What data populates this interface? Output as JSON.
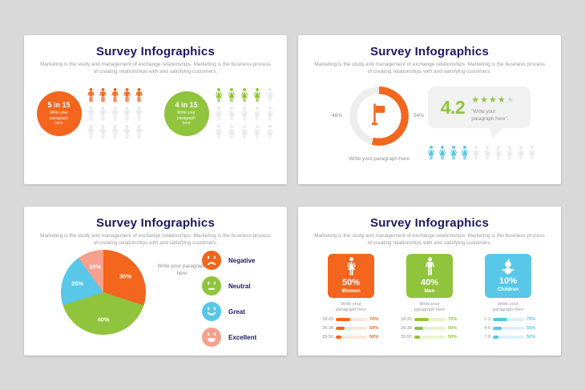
{
  "palette": {
    "orange": "#F4651D",
    "green": "#8FC43C",
    "cyan": "#58C7E8",
    "salmon": "#F6A08E",
    "navy": "#1E1765",
    "muted_icon": "#E9E9E9",
    "star_empty": "#D8D8D8",
    "donut_track": "#EDEDED",
    "bubble_bg": "#F1F1F1"
  },
  "slides": {
    "common": {
      "title": "Survey Infographics",
      "subtitle": "Marketing is the study and management of exchange relationships. Marketing is the business process of creating relationships with and satisfying customers."
    },
    "slide1": {
      "groups": [
        {
          "stat": "5 in 15",
          "note": "Write your paragraph here",
          "color": "#F4651D",
          "icon": "male",
          "total": 15,
          "filled": 5,
          "cols": 5
        },
        {
          "stat": "4 in 15",
          "note": "Write your paragraph here",
          "color": "#8FC43C",
          "icon": "female",
          "total": 15,
          "filled": 4,
          "cols": 5
        }
      ]
    },
    "slide2": {
      "donut": {
        "left_label": "46%",
        "right_label": "54%",
        "value_pct": 54,
        "color": "#F4651D",
        "track": "#EDEDED",
        "center_icon": "flag-icon",
        "caption": "Write your paragraph here"
      },
      "rating": {
        "score": "4.2",
        "score_color": "#8FC43C",
        "stars_filled": 4,
        "stars_total": 5,
        "star_color": "#8FC43C",
        "star_empty": "#D8D8D8",
        "quote": "\"Write your paragraph here\"."
      },
      "people_row": {
        "icon": "female",
        "total": 10,
        "filled": 4,
        "color": "#58C7E8"
      }
    },
    "slide3": {
      "pie": {
        "slices": [
          {
            "label": "30%",
            "value": 30,
            "color": "#F4651D"
          },
          {
            "label": "40%",
            "value": 40,
            "color": "#8FC43C"
          },
          {
            "label": "20%",
            "value": 20,
            "color": "#58C7E8"
          },
          {
            "label": "10%",
            "value": 10,
            "color": "#F6A08E"
          }
        ],
        "caption": "Write your paragraph here"
      },
      "legend": [
        {
          "label": "Negative",
          "face": "sad",
          "color": "#F4651D"
        },
        {
          "label": "Neutral",
          "face": "neutral",
          "color": "#8FC43C"
        },
        {
          "label": "Great",
          "face": "smile",
          "color": "#58C7E8"
        },
        {
          "label": "Excellent",
          "face": "laugh",
          "color": "#F6A08E"
        }
      ]
    },
    "slide4": {
      "cards": [
        {
          "pct": "50%",
          "label": "Women",
          "color": "#F4651D",
          "tint": "#FBE6DA",
          "icon": "female",
          "note": "Write your paragraph here",
          "rows": [
            {
              "label": "18-25",
              "pct": "70%",
              "fill": 46
            },
            {
              "label": "26-38",
              "pct": "50%",
              "fill": 29
            },
            {
              "label": "39-50",
              "pct": "50%",
              "fill": 17
            }
          ]
        },
        {
          "pct": "40%",
          "label": "Men",
          "color": "#8FC43C",
          "tint": "#EAF3CE",
          "icon": "male",
          "note": "Write your paragraph here",
          "rows": [
            {
              "label": "18-25",
              "pct": "70%",
              "fill": 46
            },
            {
              "label": "26-38",
              "pct": "50%",
              "fill": 29
            },
            {
              "label": "39-50",
              "pct": "50%",
              "fill": 17
            }
          ]
        },
        {
          "pct": "10%",
          "label": "Children",
          "color": "#58C7E8",
          "tint": "#DAF1F9",
          "icon": "baby",
          "note": "Write your paragraph here",
          "rows": [
            {
              "label": "1-3",
              "pct": "70%",
              "fill": 46
            },
            {
              "label": "4-6",
              "pct": "50%",
              "fill": 29
            },
            {
              "label": "7-9",
              "pct": "50%",
              "fill": 17
            }
          ]
        }
      ]
    }
  },
  "chart_data": [
    {
      "type": "pictograph",
      "title": "Survey Infographics",
      "series": [
        {
          "name": "5 in 15",
          "value": 5,
          "total": 15,
          "color": "#F4651D",
          "icon": "male"
        },
        {
          "name": "4 in 15",
          "value": 4,
          "total": 15,
          "color": "#8FC43C",
          "icon": "female"
        }
      ]
    },
    {
      "type": "pie",
      "variant": "donut",
      "labels": [
        "54%",
        "46%"
      ],
      "values": [
        54,
        46
      ],
      "colors": [
        "#F4651D",
        "#EDEDED"
      ],
      "annotations": [
        "46%",
        "54%",
        "Write your paragraph here"
      ]
    },
    {
      "type": "bar",
      "variant": "rating",
      "title": "4.2",
      "values": [
        4.2
      ],
      "ylim": [
        0,
        5
      ],
      "annotations": [
        "4 of 5 stars filled",
        "\"Write your paragraph here\"."
      ]
    },
    {
      "type": "pictograph",
      "series": [
        {
          "name": "highlighted",
          "value": 4,
          "total": 10,
          "color": "#58C7E8",
          "icon": "female"
        }
      ]
    },
    {
      "type": "pie",
      "labels": [
        "Negative",
        "Neutral",
        "Great",
        "Excellent"
      ],
      "values": [
        30,
        40,
        20,
        10
      ],
      "colors": [
        "#F4651D",
        "#8FC43C",
        "#58C7E8",
        "#F6A08E"
      ],
      "annotations": [
        "Write your paragraph here"
      ],
      "legend_position": "right"
    },
    {
      "type": "bar",
      "title": "Demographics",
      "series": [
        {
          "name": "Women 50%",
          "categories": [
            "18-25",
            "26-38",
            "39-50"
          ],
          "values": [
            70,
            50,
            50
          ],
          "color": "#F4651D"
        },
        {
          "name": "Men 40%",
          "categories": [
            "18-25",
            "26-38",
            "39-50"
          ],
          "values": [
            70,
            50,
            50
          ],
          "color": "#8FC43C"
        },
        {
          "name": "Children 10%",
          "categories": [
            "1-3",
            "4-6",
            "7-9"
          ],
          "values": [
            70,
            50,
            50
          ],
          "color": "#58C7E8"
        }
      ]
    }
  ]
}
